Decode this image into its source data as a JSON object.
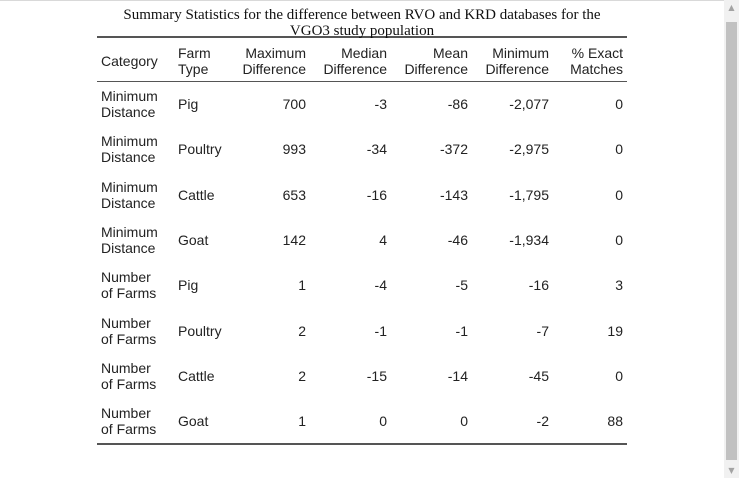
{
  "caption": {
    "line1": "Summary Statistics for the difference between RVO and KRD databases for the",
    "line2": "VGO3 study population"
  },
  "headers": {
    "category": "Category",
    "farm_type_1": "Farm",
    "farm_type_2": "Type",
    "max_1": "Maximum",
    "max_2": "Difference",
    "median_1": "Median",
    "median_2": "Difference",
    "mean_1": "Mean",
    "mean_2": "Difference",
    "min_1": "Minimum",
    "min_2": "Difference",
    "exact_1": "% Exact",
    "exact_2": "Matches"
  },
  "rows": [
    {
      "cat1": "Minimum",
      "cat2": "Distance",
      "farm": "Pig",
      "max": "700",
      "median": "-3",
      "mean": "-86",
      "min": "-2,077",
      "exact": "0"
    },
    {
      "cat1": "Minimum",
      "cat2": "Distance",
      "farm": "Poultry",
      "max": "993",
      "median": "-34",
      "mean": "-372",
      "min": "-2,975",
      "exact": "0"
    },
    {
      "cat1": "Minimum",
      "cat2": "Distance",
      "farm": "Cattle",
      "max": "653",
      "median": "-16",
      "mean": "-143",
      "min": "-1,795",
      "exact": "0"
    },
    {
      "cat1": "Minimum",
      "cat2": "Distance",
      "farm": "Goat",
      "max": "142",
      "median": "4",
      "mean": "-46",
      "min": "-1,934",
      "exact": "0"
    },
    {
      "cat1": "Number",
      "cat2": "of Farms",
      "farm": "Pig",
      "max": "1",
      "median": "-4",
      "mean": "-5",
      "min": "-16",
      "exact": "3"
    },
    {
      "cat1": "Number",
      "cat2": "of Farms",
      "farm": "Poultry",
      "max": "2",
      "median": "-1",
      "mean": "-1",
      "min": "-7",
      "exact": "19"
    },
    {
      "cat1": "Number",
      "cat2": "of Farms",
      "farm": "Cattle",
      "max": "2",
      "median": "-15",
      "mean": "-14",
      "min": "-45",
      "exact": "0"
    },
    {
      "cat1": "Number",
      "cat2": "of Farms",
      "farm": "Goat",
      "max": "1",
      "median": "0",
      "mean": "0",
      "min": "-2",
      "exact": "88"
    }
  ],
  "scrollbar": {
    "up_icon": "triangle-up-icon",
    "down_icon": "triangle-down-icon"
  }
}
